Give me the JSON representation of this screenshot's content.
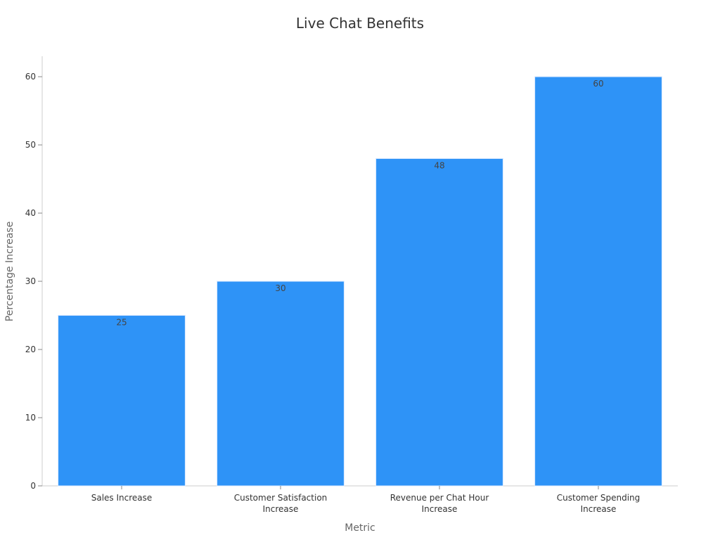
{
  "chart_data": {
    "type": "bar",
    "title": "Live Chat Benefits",
    "xlabel": "Metric",
    "ylabel": "Percentage Increase",
    "categories": [
      "Sales Increase",
      "Customer Satisfaction Increase",
      "Revenue per Chat Hour Increase",
      "Customer Spending Increase"
    ],
    "values": [
      25,
      30,
      48,
      60
    ],
    "ylim": [
      0,
      63
    ],
    "yticks": [
      0,
      10,
      20,
      30,
      40,
      50,
      60
    ],
    "grid": false,
    "data_labels": true,
    "bar_color": "#2e93f7"
  }
}
